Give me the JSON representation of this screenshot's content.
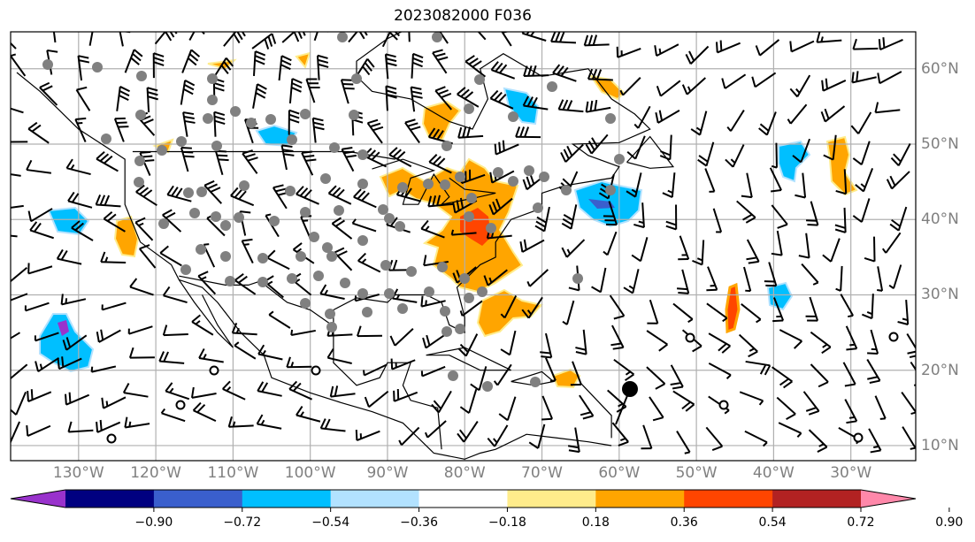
{
  "title": "2023082000 F036",
  "map": {
    "lon_labels": [
      "130°W",
      "120°W",
      "110°W",
      "100°W",
      "90°W",
      "80°W",
      "70°W",
      "60°W",
      "50°W",
      "40°W",
      "30°W"
    ],
    "lat_labels": [
      "60°N",
      "50°N",
      "40°N",
      "30°N",
      "20°N",
      "10°N"
    ],
    "extent": {
      "lon": [
        -138.8,
        -21.6
      ],
      "lat": [
        8.0,
        64.9
      ]
    }
  },
  "colorbar": {
    "labels": [
      "−0.90",
      "−0.72",
      "−0.54",
      "−0.36",
      "−0.18",
      "0.18",
      "0.36",
      "0.54",
      "0.72",
      "0.90"
    ],
    "levels": [
      -0.9,
      -0.72,
      -0.54,
      -0.36,
      -0.18,
      0.18,
      0.36,
      0.54,
      0.72,
      0.9
    ],
    "colors": [
      "#9932cc",
      "#000080",
      "#3a5fcd",
      "#00bfff",
      "#b2e2ff",
      "#ffffff",
      "#ffec8b",
      "#ffa500",
      "#ff4500",
      "#b22222",
      "#ff88aa"
    ]
  }
}
